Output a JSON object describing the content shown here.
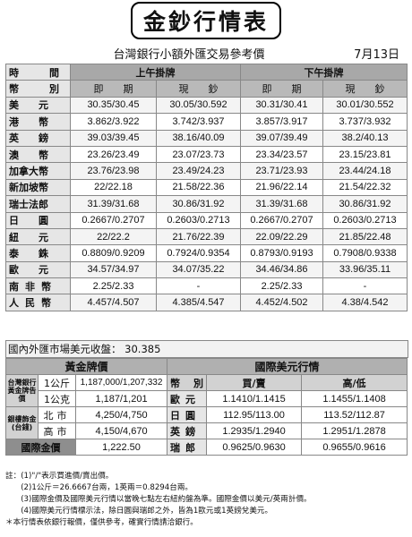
{
  "title": "金鈔行情表",
  "subtitle": "台灣銀行小額外匯交易參考價",
  "date": "7月13日",
  "fx": {
    "col_time": "時　　間",
    "col_morning": "上午掛牌",
    "col_afternoon": "下午掛牌",
    "col_currency": "幣　　別",
    "col_spot": "即　　期",
    "col_cash": "現　　鈔",
    "rows": [
      {
        "name": "美元",
        "m_spot": "30.35/30.45",
        "m_cash": "30.05/30.592",
        "a_spot": "30.31/30.41",
        "a_cash": "30.01/30.552"
      },
      {
        "name": "港幣",
        "m_spot": "3.862/3.922",
        "m_cash": "3.742/3.937",
        "a_spot": "3.857/3.917",
        "a_cash": "3.737/3.932"
      },
      {
        "name": "英鎊",
        "m_spot": "39.03/39.45",
        "m_cash": "38.16/40.09",
        "a_spot": "39.07/39.49",
        "a_cash": "38.2/40.13"
      },
      {
        "name": "澳幣",
        "m_spot": "23.26/23.49",
        "m_cash": "23.07/23.73",
        "a_spot": "23.34/23.57",
        "a_cash": "23.15/23.81"
      },
      {
        "name": "加拿大幣",
        "m_spot": "23.76/23.98",
        "m_cash": "23.49/24.23",
        "a_spot": "23.71/23.93",
        "a_cash": "23.44/24.18"
      },
      {
        "name": "新加坡幣",
        "m_spot": "22/22.18",
        "m_cash": "21.58/22.36",
        "a_spot": "21.96/22.14",
        "a_cash": "21.54/22.32"
      },
      {
        "name": "瑞士法郎",
        "m_spot": "31.39/31.68",
        "m_cash": "30.86/31.92",
        "a_spot": "31.39/31.68",
        "a_cash": "30.86/31.92"
      },
      {
        "name": "日圓",
        "m_spot": "0.2667/0.2707",
        "m_cash": "0.2603/0.2713",
        "a_spot": "0.2667/0.2707",
        "a_cash": "0.2603/0.2713"
      },
      {
        "name": "紐元",
        "m_spot": "22/22.2",
        "m_cash": "21.76/22.39",
        "a_spot": "22.09/22.29",
        "a_cash": "21.85/22.48"
      },
      {
        "name": "泰銖",
        "m_spot": "0.8809/0.9209",
        "m_cash": "0.7924/0.9354",
        "a_spot": "0.8793/0.9193",
        "a_cash": "0.7908/0.9338"
      },
      {
        "name": "歐元",
        "m_spot": "34.57/34.97",
        "m_cash": "34.07/35.22",
        "a_spot": "34.46/34.86",
        "a_cash": "33.96/35.11"
      },
      {
        "name": "南非幣",
        "m_spot": "2.25/2.33",
        "m_cash": "-",
        "a_spot": "2.25/2.33",
        "a_cash": "-"
      },
      {
        "name": "人民幣",
        "m_spot": "4.457/4.507",
        "m_cash": "4.385/4.547",
        "a_spot": "4.452/4.502",
        "a_cash": "4.38/4.542"
      }
    ]
  },
  "domestic": {
    "label": "國內外匯市場美元收盤：",
    "value": "30.385"
  },
  "gold": {
    "header": "黃金牌價",
    "bank_label": "台灣銀行黃金牌告價",
    "bank_unit": "1公斤",
    "bank_kg_value": "1,187,000/1,207,332",
    "bank_gram_unit": "1公克",
    "bank_gram_value": "1,187/1,201",
    "jewelry_label": "銀樓飾金(台錢)",
    "north_label": "北市",
    "north_value": "4,250/4,750",
    "kaohsiung_label": "高市",
    "kaohsiung_value": "4,150/4,670",
    "intl_label": "國際金價",
    "intl_value": "1,222.50"
  },
  "intl_usd": {
    "header": "國際美元行情",
    "col_currency": "幣　別",
    "col_buysell": "買/賣",
    "col_highlow": "高/低",
    "rows": [
      {
        "name": "歐元",
        "buysell": "1.1410/1.1415",
        "highlow": "1.1455/1.1408"
      },
      {
        "name": "日圓",
        "buysell": "112.95/113.00",
        "highlow": "113.52/112.87"
      },
      {
        "name": "英鎊",
        "buysell": "1.2935/1.2940",
        "highlow": "1.2951/1.2878"
      },
      {
        "name": "瑞郎",
        "buysell": "0.9625/0.9630",
        "highlow": "0.9655/0.9616"
      }
    ]
  },
  "notes": [
    "註：(1)\"/\"表示買進價/賣出價。",
    "　　(2)1公斤＝26.6667台兩，1英兩＝0.8294台兩。",
    "　　(3)國際金價及國際美元行情以當晚七點左右紐約盤為準。國際金價以美元/英兩計價。",
    "　　(4)國際美元行情標示法，除日圓與瑞郎之外，皆為1歐元或1英鎊兌美元。",
    "＊本行情表依銀行報價，僅供參考，確實行情請洽銀行。"
  ]
}
